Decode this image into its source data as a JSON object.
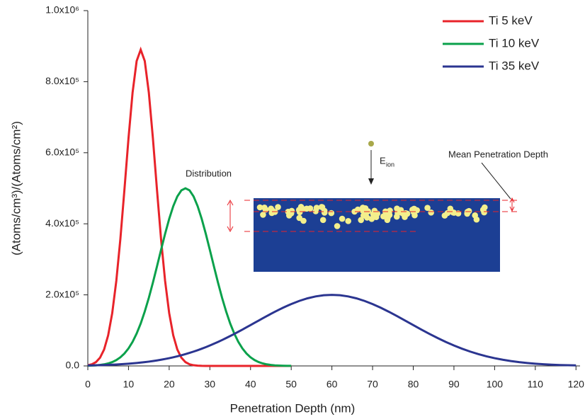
{
  "chart_data": {
    "type": "line",
    "xlabel": "Penetration Depth (nm)",
    "ylabel": "(Atoms/cm³)/(Atoms/cm²)",
    "annotations": [
      "Distribution",
      "E",
      "ion",
      "Mean Penetration Depth"
    ],
    "xlim": [
      0,
      121
    ],
    "ylim": [
      0,
      1000000
    ],
    "xticks": [
      0,
      10,
      20,
      30,
      40,
      50,
      60,
      70,
      80,
      90,
      100,
      110,
      120
    ],
    "yticks": [
      {
        "value": 0,
        "label": "0.0"
      },
      {
        "value": 200000,
        "label": "2.0x10⁵"
      },
      {
        "value": 400000,
        "label": "4.0x10⁵"
      },
      {
        "value": 600000,
        "label": "6.0x10⁵"
      },
      {
        "value": 800000,
        "label": "8.0x10⁵"
      },
      {
        "value": 1000000,
        "label": "1.0x10⁶"
      }
    ],
    "legend": "upper right",
    "x": [
      0,
      1,
      2,
      3,
      4,
      5,
      6,
      7,
      8,
      9,
      10,
      11,
      12,
      13,
      14,
      15,
      16,
      17,
      18,
      19,
      20,
      21,
      22,
      23,
      24,
      25,
      26,
      27,
      28,
      29,
      30,
      31,
      32,
      33,
      34,
      35,
      36,
      37,
      38,
      39,
      40,
      41,
      42,
      43,
      44,
      45,
      46,
      47,
      48,
      49,
      50,
      52,
      54,
      56,
      58,
      60,
      62,
      64,
      66,
      68,
      70,
      72,
      74,
      76,
      78,
      80,
      82,
      84,
      86,
      88,
      90,
      92,
      94,
      96,
      98,
      100,
      102,
      104,
      106,
      108,
      110,
      112,
      114,
      116,
      118,
      120
    ],
    "series": [
      {
        "name": "Ti 5 keV",
        "color": "#e8232a",
        "values": [
          1900,
          4600,
          10700,
          23100,
          46200,
          86000,
          148700,
          239000,
          357000,
          496000,
          640600,
          769000,
          858000,
          890000,
          858000,
          769000,
          640600,
          496000,
          357000,
          239000,
          148700,
          86000,
          46200,
          23100,
          10700,
          4600,
          1900,
          690,
          240,
          77,
          0,
          0,
          0,
          0,
          0,
          0,
          0,
          0,
          0,
          0,
          0,
          0,
          0,
          0,
          0,
          0,
          0,
          0,
          0,
          0,
          0,
          null,
          null,
          null,
          null,
          null,
          null,
          null,
          null,
          null,
          null,
          null,
          null,
          null,
          null,
          null,
          null,
          null,
          null,
          null,
          null,
          null,
          null,
          null,
          null,
          null,
          null,
          null,
          null,
          null,
          null,
          null,
          null,
          null,
          null,
          null
        ]
      },
      {
        "name": "Ti 10 keV",
        "color": "#0aa14b",
        "values": [
          550,
          950,
          1600,
          2700,
          4400,
          7000,
          10800,
          16400,
          24200,
          34900,
          49200,
          67700,
          91000,
          119400,
          153200,
          191700,
          234500,
          280000,
          326500,
          371900,
          413700,
          449500,
          476900,
          494100,
          500000,
          494100,
          476900,
          449500,
          413700,
          371900,
          326500,
          280000,
          234500,
          191700,
          153200,
          119400,
          91000,
          67700,
          49200,
          34900,
          24200,
          16400,
          10800,
          7000,
          4400,
          2700,
          1600,
          950,
          550,
          300,
          170,
          null,
          null,
          null,
          null,
          null,
          null,
          null,
          null,
          null,
          null,
          null,
          null,
          null,
          null,
          null,
          null,
          null,
          null,
          null,
          null,
          null,
          null,
          null,
          null,
          null,
          null,
          null,
          null,
          null,
          null,
          null,
          null,
          null,
          null,
          null
        ]
      },
      {
        "name": "Ti 35 keV",
        "color": "#2b3590",
        "values": [
          1370,
          1610,
          1900,
          2220,
          2600,
          3030,
          3520,
          4090,
          4730,
          5450,
          6270,
          7190,
          8220,
          9380,
          10670,
          12100,
          13700,
          15440,
          17380,
          19500,
          21800,
          24320,
          27070,
          30020,
          33220,
          36660,
          40340,
          44260,
          48440,
          52840,
          57480,
          62400,
          67520,
          72840,
          78420,
          84160,
          90060,
          96120,
          102300,
          108580,
          114940,
          121300,
          127680,
          134020,
          140280,
          146460,
          152440,
          158260,
          163840,
          169140,
          174140,
          183040,
          190280,
          195620,
          198900,
          200000,
          198900,
          195620,
          190280,
          183040,
          174140,
          163840,
          152440,
          140280,
          127680,
          114940,
          102300,
          90060,
          78420,
          67520,
          57480,
          48440,
          40340,
          33220,
          27070,
          21800,
          17380,
          13700,
          10670,
          8220,
          6270,
          4730,
          3520,
          2600,
          1900,
          1370
        ]
      }
    ]
  }
}
